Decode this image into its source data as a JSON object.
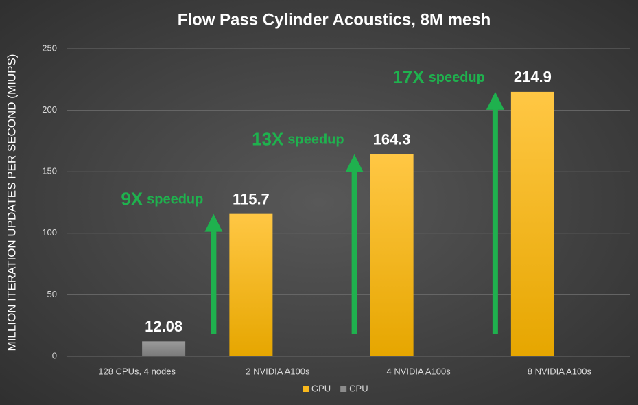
{
  "chart_data": {
    "type": "bar",
    "title": "Flow Pass Cylinder Acoustics, 8M mesh",
    "y_label": "MILLION ITERATION UPDATES PER SECOND (MIUPS)",
    "categories": [
      "128 CPUs, 4 nodes",
      "2 NVIDIA A100s",
      "4 NVIDIA A100s",
      "8 NVIDIA A100s"
    ],
    "series": [
      {
        "name": "GPU",
        "color": "#f9b81c",
        "values": [
          null,
          115.7,
          164.3,
          214.9
        ]
      },
      {
        "name": "CPU",
        "color": "#8c8c8c",
        "values": [
          12.08,
          null,
          null,
          null
        ]
      }
    ],
    "ylim": [
      0,
      250
    ],
    "yticks": [
      0,
      50,
      100,
      150,
      200,
      250
    ],
    "grid": true,
    "legend": "bottom",
    "annotations": [
      {
        "factor": "9X",
        "text": "speedup"
      },
      {
        "factor": "13X",
        "text": "speedup"
      },
      {
        "factor": "17X",
        "text": "speedup"
      }
    ],
    "annotation_color": "#1fb14e"
  }
}
